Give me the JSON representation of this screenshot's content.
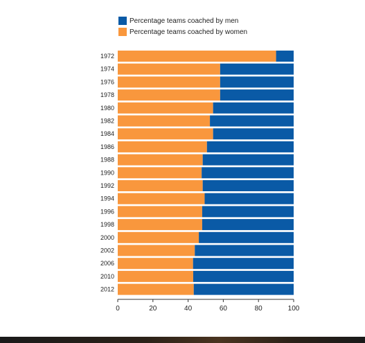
{
  "legend": {
    "men_label": "Percentage teams coached by men",
    "women_label": "Percentage teams coached by women"
  },
  "colors": {
    "men": "#0a5aa6",
    "women": "#f9973d"
  },
  "chart_data": {
    "type": "bar",
    "orientation": "horizontal",
    "stacked": true,
    "categories": [
      "1972",
      "1974",
      "1976",
      "1978",
      "1980",
      "1982",
      "1984",
      "1986",
      "1988",
      "1990",
      "1992",
      "1994",
      "1996",
      "1998",
      "2000",
      "2002",
      "2006",
      "2010",
      "2012"
    ],
    "series": [
      {
        "name": "Percentage teams coached by women",
        "values": [
          90,
          58.2,
          58.2,
          58.2,
          54.2,
          52.4,
          54.2,
          50.7,
          48.3,
          47.7,
          48.3,
          49.4,
          48,
          48,
          46.1,
          43.8,
          42.8,
          42.9,
          43.2
        ]
      },
      {
        "name": "Percentage teams coached by men",
        "values": [
          10,
          41.8,
          41.8,
          41.8,
          45.8,
          47.6,
          45.8,
          49.3,
          51.7,
          52.3,
          51.7,
          50.6,
          52,
          52,
          53.9,
          56.2,
          57.2,
          57.1,
          56.8
        ]
      }
    ],
    "xlim": [
      0,
      100
    ],
    "xticks": [
      0,
      20,
      40,
      60,
      80,
      100
    ],
    "title": "",
    "xlabel": "",
    "ylabel": "",
    "legend_position": "top"
  }
}
